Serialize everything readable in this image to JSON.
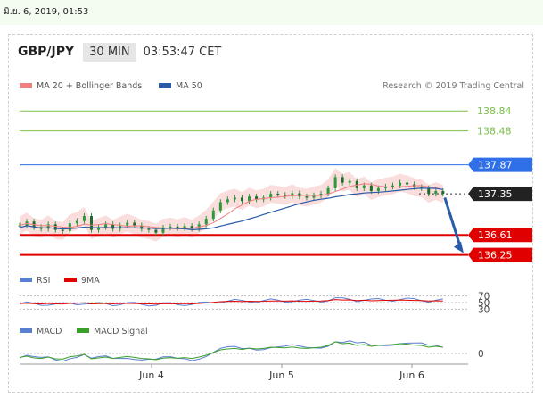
{
  "topbar": {
    "date_text": "มิ.ย. 6, 2019, 01:53"
  },
  "header": {
    "symbol": "GBP/JPY",
    "timeframe": "30 MIN",
    "time": "03:53:47 CET"
  },
  "legend": {
    "ma_bb_label": "MA 20 + Bollinger Bands",
    "ma50_label": "MA 50",
    "ma_bb_color": "#f08080",
    "ma50_color": "#2a5aa8",
    "credit": "Research © 2019 Trading Central"
  },
  "colors": {
    "resistance": "#2f6fe8",
    "support": "#e10000",
    "target": "#7abf4a",
    "candle": "#2a9a3a",
    "arrow": "#2a5aa8"
  },
  "chart_data": [
    {
      "type": "line",
      "title": "",
      "x_ticks": [
        "Jun 4",
        "Jun 5",
        "Jun 6"
      ],
      "y_levels": [
        {
          "value": 138.84,
          "label": "138.84",
          "kind": "target"
        },
        {
          "value": 138.48,
          "label": "138.48",
          "kind": "target"
        },
        {
          "value": 137.87,
          "label": "137.87",
          "kind": "resistance"
        },
        {
          "value": 137.35,
          "label": "137.35",
          "kind": "current"
        },
        {
          "value": 136.61,
          "label": "136.61",
          "kind": "support"
        },
        {
          "value": 136.25,
          "label": "136.25",
          "kind": "support"
        }
      ],
      "series": [
        {
          "name": "MA 20 + Bollinger Bands"
        },
        {
          "name": "MA 50"
        }
      ],
      "close_path": [
        [
          0,
          136.78
        ],
        [
          4,
          136.85
        ],
        [
          8,
          136.75
        ],
        [
          12,
          136.72
        ],
        [
          16,
          136.8
        ],
        [
          20,
          136.7
        ],
        [
          24,
          136.68
        ],
        [
          28,
          136.82
        ],
        [
          32,
          136.86
        ],
        [
          36,
          136.95
        ],
        [
          40,
          136.7
        ],
        [
          44,
          136.75
        ],
        [
          48,
          136.8
        ],
        [
          52,
          136.72
        ],
        [
          56,
          136.78
        ],
        [
          60,
          136.83
        ],
        [
          64,
          136.78
        ],
        [
          68,
          136.72
        ],
        [
          72,
          136.7
        ],
        [
          76,
          136.65
        ],
        [
          80,
          136.74
        ],
        [
          84,
          136.76
        ],
        [
          88,
          136.73
        ],
        [
          92,
          136.77
        ],
        [
          96,
          136.72
        ],
        [
          100,
          136.8
        ],
        [
          104,
          136.9
        ],
        [
          108,
          137.05
        ],
        [
          112,
          137.2
        ],
        [
          116,
          137.25
        ],
        [
          120,
          137.28
        ],
        [
          124,
          137.22
        ],
        [
          128,
          137.3
        ],
        [
          132,
          137.25
        ],
        [
          136,
          137.28
        ],
        [
          140,
          137.35
        ],
        [
          144,
          137.33
        ],
        [
          148,
          137.31
        ],
        [
          152,
          137.36
        ],
        [
          156,
          137.3
        ],
        [
          160,
          137.28
        ],
        [
          164,
          137.32
        ],
        [
          168,
          137.35
        ],
        [
          172,
          137.45
        ],
        [
          176,
          137.65
        ],
        [
          180,
          137.55
        ],
        [
          184,
          137.58
        ],
        [
          188,
          137.45
        ],
        [
          192,
          137.5
        ],
        [
          196,
          137.4
        ],
        [
          200,
          137.45
        ],
        [
          204,
          137.48
        ],
        [
          208,
          137.5
        ],
        [
          212,
          137.55
        ],
        [
          216,
          137.52
        ],
        [
          220,
          137.47
        ],
        [
          224,
          137.45
        ],
        [
          228,
          137.35
        ],
        [
          232,
          137.4
        ],
        [
          236,
          137.35
        ]
      ],
      "ylim": [
        136.1,
        139.1
      ],
      "xlim": [
        0,
        250
      ]
    },
    {
      "type": "line",
      "title": "",
      "series": [
        {
          "name": "RSI"
        },
        {
          "name": "9MA"
        }
      ],
      "y_ticks": [
        "70",
        "50",
        "30"
      ],
      "ylim": [
        20,
        80
      ]
    },
    {
      "type": "line",
      "title": "",
      "series": [
        {
          "name": "MACD"
        },
        {
          "name": "MACD Signal"
        }
      ],
      "y_ticks": [
        "0"
      ]
    }
  ],
  "rsi_legend": {
    "rsi": "RSI",
    "ma9": "9MA",
    "rsi_color": "#5b7fd0",
    "ma9_color": "#e10000"
  },
  "macd_legend": {
    "macd": "MACD",
    "signal": "MACD Signal",
    "macd_color": "#5b7fd0",
    "signal_color": "#3aa02a"
  }
}
